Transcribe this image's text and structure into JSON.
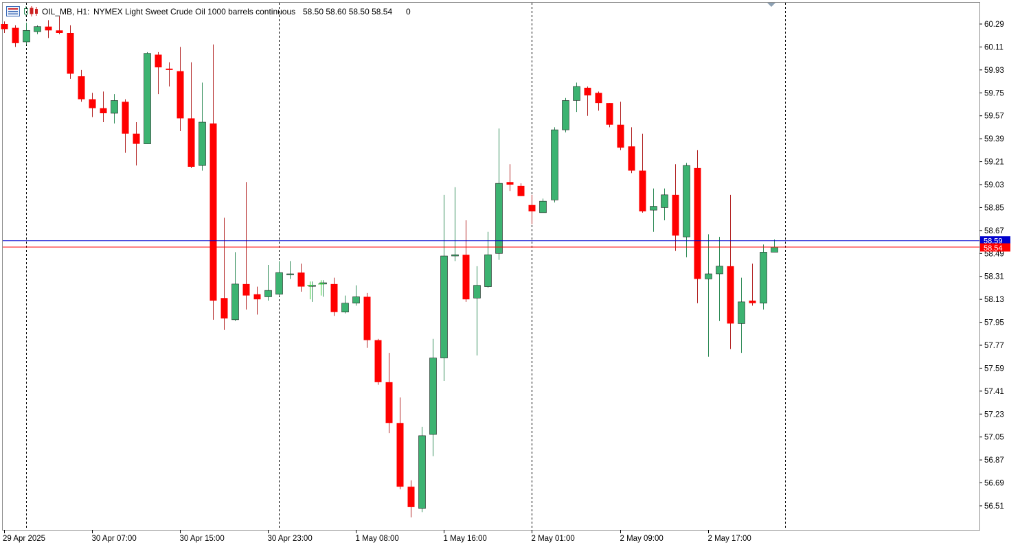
{
  "header": {
    "symbol": "OIL_MB, H1:",
    "description": "NYMEX Light Sweet Crude Oil 1000 barrels continuous",
    "ohlc": "58.50 58.60 58.50 58.54",
    "extra": "0"
  },
  "colors": {
    "up": "#3cb371",
    "down": "#ff0000",
    "wick_up": "#2e8b57",
    "wick_down": "#b22222",
    "ask_line": "#0000cd",
    "bid_line": "#ff0000",
    "ask_label_bg": "#0000cd",
    "bid_label_bg": "#ff0000",
    "grid_separator": "#000000",
    "frame": "#8c8c8c",
    "forming": "#32cd32"
  },
  "chart_data": {
    "type": "candlestick",
    "yticks": [
      "60.29",
      "60.11",
      "59.93",
      "59.75",
      "59.57",
      "59.39",
      "59.21",
      "59.03",
      "58.85",
      "58.67",
      "58.49",
      "58.31",
      "58.13",
      "57.95",
      "57.77",
      "57.59",
      "57.41",
      "57.23",
      "57.05",
      "56.87",
      "56.69",
      "56.51"
    ],
    "ylim": [
      56.32,
      60.45
    ],
    "xticks": [
      {
        "label": "29 Apr 2025",
        "bar": 0
      },
      {
        "label": "30 Apr 07:00",
        "bar": 8
      },
      {
        "label": "30 Apr 15:00",
        "bar": 16
      },
      {
        "label": "30 Apr 23:00",
        "bar": 24
      },
      {
        "label": "1 May 08:00",
        "bar": 32
      },
      {
        "label": "1 May 16:00",
        "bar": 40
      },
      {
        "label": "2 May 01:00",
        "bar": 48
      },
      {
        "label": "2 May 09:00",
        "bar": 56
      },
      {
        "label": "2 May 17:00",
        "bar": 64
      }
    ],
    "separators": [
      2,
      25,
      48,
      71
    ],
    "ask": 58.59,
    "bid": 58.54,
    "ask_label": "58.59",
    "bid_label": "58.54",
    "candles": [
      {
        "o": 60.29,
        "h": 60.31,
        "l": 60.22,
        "c": 60.25
      },
      {
        "o": 60.26,
        "h": 60.28,
        "l": 60.11,
        "c": 60.14
      },
      {
        "o": 60.15,
        "h": 60.3,
        "l": 60.13,
        "c": 60.24
      },
      {
        "o": 60.23,
        "h": 60.28,
        "l": 60.21,
        "c": 60.27
      },
      {
        "o": 60.27,
        "h": 60.32,
        "l": 60.18,
        "c": 60.24
      },
      {
        "o": 60.24,
        "h": 60.35,
        "l": 60.21,
        "c": 60.22
      },
      {
        "o": 60.22,
        "h": 60.28,
        "l": 59.86,
        "c": 59.9
      },
      {
        "o": 59.88,
        "h": 59.93,
        "l": 59.68,
        "c": 59.7
      },
      {
        "o": 59.7,
        "h": 59.75,
        "l": 59.56,
        "c": 59.63
      },
      {
        "o": 59.63,
        "h": 59.76,
        "l": 59.52,
        "c": 59.59
      },
      {
        "o": 59.59,
        "h": 59.74,
        "l": 59.51,
        "c": 59.69
      },
      {
        "o": 59.68,
        "h": 59.7,
        "l": 59.28,
        "c": 59.43
      },
      {
        "o": 59.43,
        "h": 59.52,
        "l": 59.18,
        "c": 59.35
      },
      {
        "o": 59.35,
        "h": 60.07,
        "l": 59.35,
        "c": 60.06
      },
      {
        "o": 60.05,
        "h": 60.07,
        "l": 59.74,
        "c": 59.95
      },
      {
        "o": 59.94,
        "h": 59.99,
        "l": 59.8,
        "c": 59.93
      },
      {
        "o": 59.92,
        "h": 60.11,
        "l": 59.45,
        "c": 59.55
      },
      {
        "o": 59.55,
        "h": 59.99,
        "l": 59.16,
        "c": 59.17
      },
      {
        "o": 59.18,
        "h": 59.83,
        "l": 59.14,
        "c": 59.52
      },
      {
        "o": 59.51,
        "h": 60.13,
        "l": 57.97,
        "c": 58.12
      },
      {
        "o": 58.14,
        "h": 58.77,
        "l": 57.89,
        "c": 57.98
      },
      {
        "o": 57.97,
        "h": 58.5,
        "l": 57.96,
        "c": 58.25
      },
      {
        "o": 58.25,
        "h": 59.05,
        "l": 58.05,
        "c": 58.16
      },
      {
        "o": 58.17,
        "h": 58.23,
        "l": 58.01,
        "c": 58.13
      },
      {
        "o": 58.15,
        "h": 58.4,
        "l": 58.12,
        "c": 58.2
      },
      {
        "o": 58.17,
        "h": 58.43,
        "l": 58.16,
        "c": 58.34
      },
      {
        "o": 58.33,
        "h": 58.43,
        "l": 58.29,
        "c": 58.33
      },
      {
        "o": 58.34,
        "h": 58.41,
        "l": 58.19,
        "c": 58.23
      },
      {
        "o": 58.24,
        "h": 58.27,
        "l": 58.11,
        "c": 58.24
      },
      {
        "o": 58.25,
        "h": 58.28,
        "l": 58.15,
        "c": 58.26
      },
      {
        "o": 58.25,
        "h": 58.3,
        "l": 58.0,
        "c": 58.03
      },
      {
        "o": 58.03,
        "h": 58.16,
        "l": 58.02,
        "c": 58.1
      },
      {
        "o": 58.1,
        "h": 58.24,
        "l": 58.08,
        "c": 58.15
      },
      {
        "o": 58.15,
        "h": 58.18,
        "l": 57.75,
        "c": 57.81
      },
      {
        "o": 57.81,
        "h": 57.82,
        "l": 57.46,
        "c": 57.48
      },
      {
        "o": 57.48,
        "h": 57.71,
        "l": 57.08,
        "c": 57.16
      },
      {
        "o": 57.16,
        "h": 57.36,
        "l": 56.64,
        "c": 56.66
      },
      {
        "o": 56.66,
        "h": 56.71,
        "l": 56.42,
        "c": 56.5
      },
      {
        "o": 56.49,
        "h": 57.13,
        "l": 56.46,
        "c": 57.06
      },
      {
        "o": 57.07,
        "h": 57.82,
        "l": 56.9,
        "c": 57.67
      },
      {
        "o": 57.67,
        "h": 58.95,
        "l": 57.49,
        "c": 58.47
      },
      {
        "o": 58.47,
        "h": 59.01,
        "l": 58.43,
        "c": 58.48
      },
      {
        "o": 58.48,
        "h": 58.75,
        "l": 58.11,
        "c": 58.13
      },
      {
        "o": 58.14,
        "h": 58.39,
        "l": 57.69,
        "c": 58.24
      },
      {
        "o": 58.23,
        "h": 58.66,
        "l": 58.22,
        "c": 58.48
      },
      {
        "o": 58.49,
        "h": 59.47,
        "l": 58.44,
        "c": 59.04
      },
      {
        "o": 59.05,
        "h": 59.19,
        "l": 58.98,
        "c": 59.03
      },
      {
        "o": 59.02,
        "h": 59.04,
        "l": 58.94,
        "c": 58.94
      },
      {
        "o": 58.87,
        "h": 58.95,
        "l": 58.72,
        "c": 58.82
      },
      {
        "o": 58.81,
        "h": 58.92,
        "l": 58.81,
        "c": 58.9
      },
      {
        "o": 58.91,
        "h": 59.48,
        "l": 58.89,
        "c": 59.46
      },
      {
        "o": 59.46,
        "h": 59.71,
        "l": 59.44,
        "c": 59.69
      },
      {
        "o": 59.69,
        "h": 59.83,
        "l": 59.6,
        "c": 59.8
      },
      {
        "o": 59.79,
        "h": 59.8,
        "l": 59.57,
        "c": 59.73
      },
      {
        "o": 59.75,
        "h": 59.76,
        "l": 59.61,
        "c": 59.67
      },
      {
        "o": 59.67,
        "h": 59.67,
        "l": 59.48,
        "c": 59.5
      },
      {
        "o": 59.5,
        "h": 59.68,
        "l": 59.3,
        "c": 59.32
      },
      {
        "o": 59.33,
        "h": 59.48,
        "l": 59.12,
        "c": 59.14
      },
      {
        "o": 59.14,
        "h": 59.43,
        "l": 58.81,
        "c": 58.82
      },
      {
        "o": 58.83,
        "h": 59.0,
        "l": 58.66,
        "c": 58.86
      },
      {
        "o": 58.85,
        "h": 59.0,
        "l": 58.75,
        "c": 58.95
      },
      {
        "o": 58.95,
        "h": 59.19,
        "l": 58.51,
        "c": 58.63
      },
      {
        "o": 58.62,
        "h": 59.2,
        "l": 58.46,
        "c": 59.18
      },
      {
        "o": 59.16,
        "h": 59.3,
        "l": 58.1,
        "c": 58.29
      },
      {
        "o": 58.29,
        "h": 58.64,
        "l": 57.68,
        "c": 58.33
      },
      {
        "o": 58.33,
        "h": 58.62,
        "l": 57.96,
        "c": 58.39
      },
      {
        "o": 58.39,
        "h": 58.95,
        "l": 57.74,
        "c": 57.94
      },
      {
        "o": 57.94,
        "h": 58.3,
        "l": 57.71,
        "c": 58.11
      },
      {
        "o": 58.12,
        "h": 58.41,
        "l": 58.08,
        "c": 58.1
      },
      {
        "o": 58.1,
        "h": 58.56,
        "l": 58.05,
        "c": 58.5
      },
      {
        "o": 58.5,
        "h": 58.6,
        "l": 58.5,
        "c": 58.54
      }
    ],
    "forming_marks": [
      {
        "x": 451,
        "top": 58.27,
        "bottom": 58.13,
        "mid": 58.24
      },
      {
        "x": 467,
        "top": 58.28,
        "bottom": 58.16,
        "mid": 58.25
      }
    ]
  }
}
